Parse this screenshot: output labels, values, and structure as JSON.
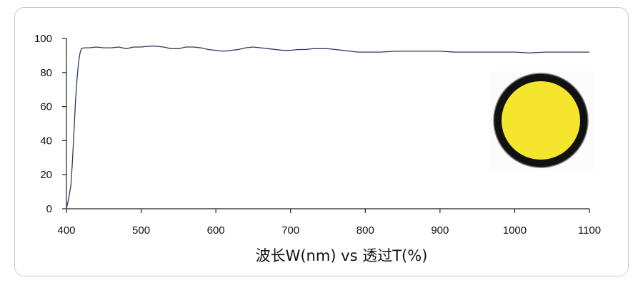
{
  "chart_data": {
    "type": "line",
    "xlabel": "波长W(nm) vs 透过T(%)",
    "ylabel": "",
    "xlim": [
      400,
      1100
    ],
    "ylim": [
      0,
      100
    ],
    "x_ticks": [
      400,
      500,
      600,
      700,
      800,
      900,
      1000,
      1100
    ],
    "y_ticks": [
      0,
      20,
      40,
      60,
      80,
      100
    ],
    "grid": false,
    "legend": "none",
    "line_color": "#2b3a67",
    "series": [
      {
        "x": [
          400,
          403,
          406,
          408,
          410,
          412,
          414,
          416,
          418,
          420,
          423,
          430,
          440,
          450,
          460,
          470,
          480,
          490,
          500,
          510,
          520,
          530,
          540,
          550,
          560,
          570,
          580,
          590,
          600,
          610,
          620,
          630,
          640,
          650,
          660,
          670,
          680,
          690,
          700,
          710,
          720,
          730,
          740,
          750,
          760,
          770,
          780,
          790,
          800,
          820,
          840,
          860,
          880,
          900,
          920,
          940,
          960,
          980,
          1000,
          1020,
          1040,
          1060,
          1080,
          1100
        ],
        "y": [
          0,
          6,
          14,
          28,
          45,
          62,
          75,
          85,
          91,
          94,
          94.5,
          94.5,
          95,
          94.5,
          94.5,
          95,
          94,
          95,
          95,
          95.5,
          95.5,
          95,
          94,
          94,
          95,
          95,
          94.5,
          93.5,
          93,
          92.5,
          93,
          93.5,
          94.5,
          95,
          94.5,
          94,
          93.5,
          93,
          93,
          93.5,
          93.5,
          94,
          94,
          94,
          93.5,
          93,
          92.5,
          92,
          92,
          92,
          92.5,
          92.5,
          92.5,
          92.5,
          92,
          92,
          92,
          92,
          92,
          91.5,
          92,
          92,
          92,
          92
        ]
      }
    ]
  },
  "inset": {
    "ring_color": "#111111",
    "fill_color": "#f3e62c"
  }
}
